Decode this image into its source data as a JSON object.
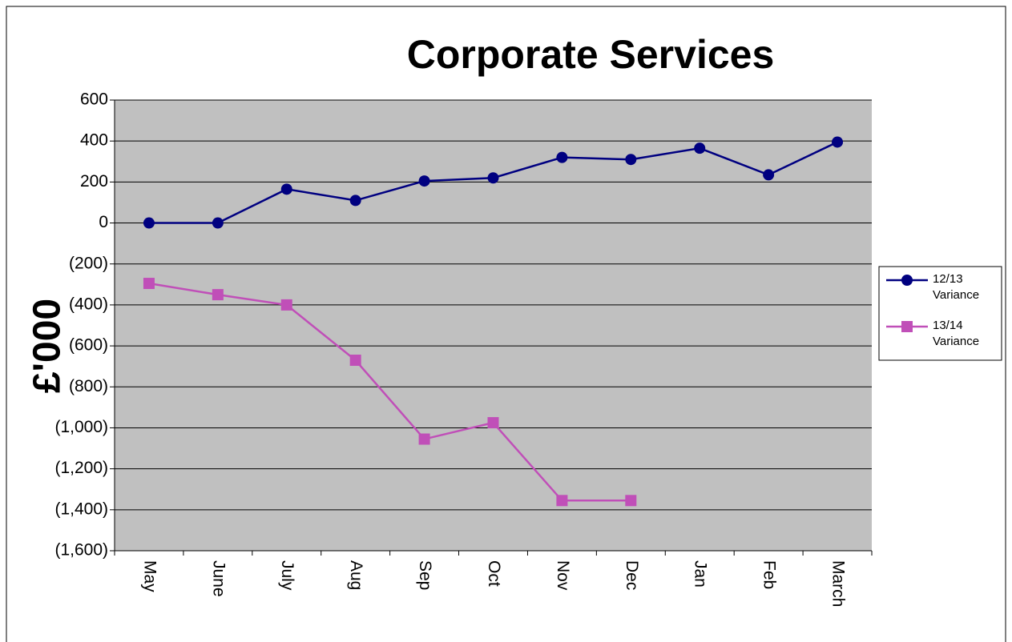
{
  "chart_data": {
    "type": "line",
    "title": "Corporate Services",
    "y_label": "£'000",
    "categories": [
      "May",
      "June",
      "July",
      "Aug",
      "Sep",
      "Oct",
      "Nov",
      "Dec",
      "Jan",
      "Feb",
      "March"
    ],
    "series": [
      {
        "name": "12/13 Variance",
        "color": "#000080",
        "marker": "circle",
        "values": [
          0,
          0,
          165,
          110,
          205,
          220,
          320,
          310,
          365,
          235,
          395
        ]
      },
      {
        "name": "13/14 Variance",
        "color": "#c04fb8",
        "marker": "square",
        "values": [
          -295,
          -350,
          -400,
          -670,
          -1055,
          -975,
          -1355,
          -1355,
          null,
          null,
          null
        ]
      }
    ],
    "ylim": [
      -1600,
      600
    ],
    "yticks": [
      {
        "value": -1600,
        "label": "(1,600)"
      },
      {
        "value": -1400,
        "label": "(1,400)"
      },
      {
        "value": -1200,
        "label": "(1,200)"
      },
      {
        "value": -1000,
        "label": "(1,000)"
      },
      {
        "value": -800,
        "label": "(800)"
      },
      {
        "value": -600,
        "label": "(600)"
      },
      {
        "value": -400,
        "label": "(400)"
      },
      {
        "value": -200,
        "label": "(200)"
      },
      0,
      200,
      400,
      600
    ],
    "grid": true,
    "plot_background": "#c0c0c0",
    "legend": "right"
  }
}
